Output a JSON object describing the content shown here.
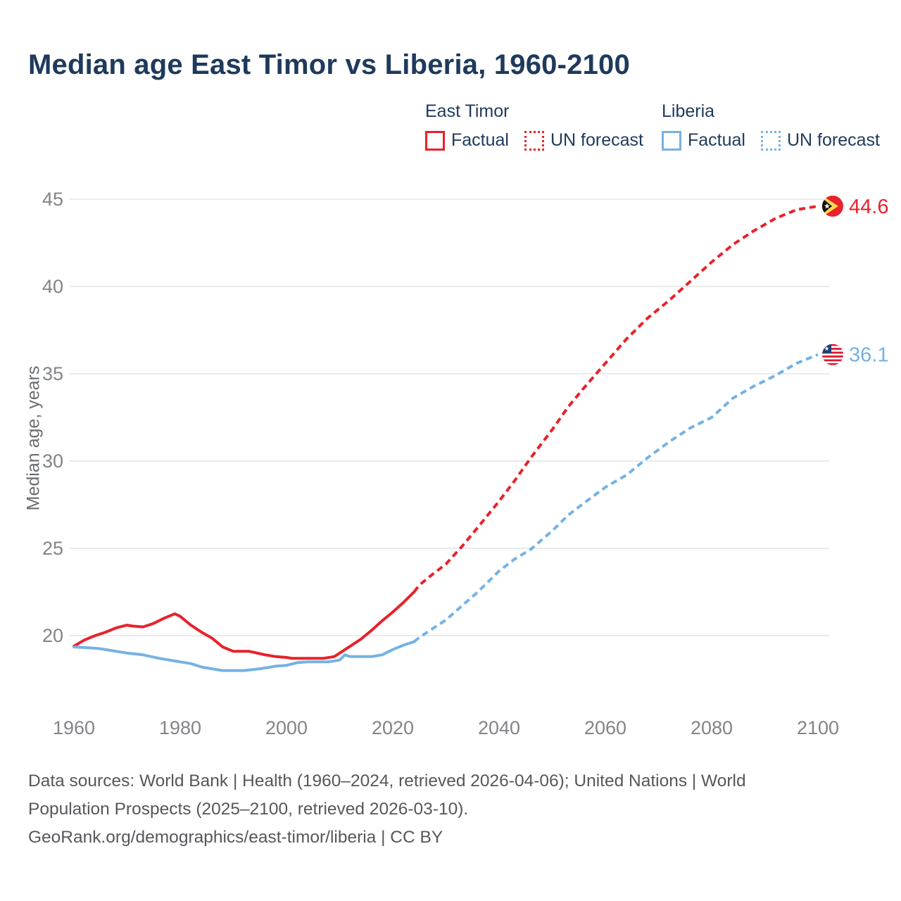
{
  "title": "Median age East Timor vs Liberia, 1960-2100",
  "legend": {
    "groups": [
      {
        "name": "East Timor",
        "color": "#e8222b",
        "items": [
          {
            "label": "Factual",
            "style": "solid"
          },
          {
            "label": "UN forecast",
            "style": "dotted"
          }
        ]
      },
      {
        "name": "Liberia",
        "color": "#76b2e3",
        "items": [
          {
            "label": "Factual",
            "style": "solid"
          },
          {
            "label": "UN forecast",
            "style": "dotted"
          }
        ]
      }
    ]
  },
  "chart_data": {
    "type": "line",
    "title": "Median age East Timor vs Liberia, 1960-2100",
    "xlabel": "",
    "ylabel": "Median age, years",
    "xlim": [
      1960,
      2100
    ],
    "ylim": [
      17.5,
      45.8
    ],
    "yticks": [
      20,
      25,
      30,
      35,
      40,
      45
    ],
    "xticks": [
      1960,
      1980,
      2000,
      2020,
      2040,
      2060,
      2080,
      2100
    ],
    "grid": "horizontal",
    "legend_position": "top",
    "watermark": "2100",
    "colors": {
      "east_timor": "#e8222b",
      "liberia": "#76b2e3",
      "grid": "#ebebeb",
      "tick_text": "#828487",
      "watermark": "#c6c8ca"
    },
    "series": [
      {
        "name": "East Timor — Factual",
        "color": "#e8222b",
        "style": "solid",
        "points": [
          [
            1960,
            19.4
          ],
          [
            1962,
            19.75
          ],
          [
            1964,
            20.0
          ],
          [
            1966,
            20.2
          ],
          [
            1968,
            20.45
          ],
          [
            1970,
            20.6
          ],
          [
            1971,
            20.55
          ],
          [
            1973,
            20.5
          ],
          [
            1975,
            20.7
          ],
          [
            1977,
            21.0
          ],
          [
            1979,
            21.25
          ],
          [
            1980,
            21.1
          ],
          [
            1982,
            20.6
          ],
          [
            1984,
            20.2
          ],
          [
            1986,
            19.85
          ],
          [
            1988,
            19.35
          ],
          [
            1990,
            19.1
          ],
          [
            1993,
            19.1
          ],
          [
            1996,
            18.9
          ],
          [
            1998,
            18.8
          ],
          [
            2000,
            18.75
          ],
          [
            2001,
            18.7
          ],
          [
            2004,
            18.7
          ],
          [
            2007,
            18.7
          ],
          [
            2009,
            18.8
          ],
          [
            2010,
            19.0
          ],
          [
            2012,
            19.4
          ],
          [
            2014,
            19.8
          ],
          [
            2016,
            20.3
          ],
          [
            2018,
            20.85
          ],
          [
            2020,
            21.35
          ],
          [
            2022,
            21.9
          ],
          [
            2023,
            22.2
          ],
          [
            2024,
            22.5
          ]
        ]
      },
      {
        "name": "East Timor — UN forecast",
        "color": "#e8222b",
        "style": "dashed",
        "end_label": "44.6",
        "end_value": 44.6,
        "points": [
          [
            2024,
            22.5
          ],
          [
            2025,
            22.9
          ],
          [
            2027,
            23.4
          ],
          [
            2030,
            24.1
          ],
          [
            2033,
            25.1
          ],
          [
            2036,
            26.2
          ],
          [
            2040,
            27.7
          ],
          [
            2043,
            28.9
          ],
          [
            2046,
            30.2
          ],
          [
            2050,
            31.8
          ],
          [
            2053,
            33.1
          ],
          [
            2056,
            34.2
          ],
          [
            2060,
            35.6
          ],
          [
            2064,
            37.0
          ],
          [
            2068,
            38.2
          ],
          [
            2072,
            39.2
          ],
          [
            2076,
            40.3
          ],
          [
            2080,
            41.4
          ],
          [
            2084,
            42.4
          ],
          [
            2088,
            43.2
          ],
          [
            2092,
            43.9
          ],
          [
            2096,
            44.4
          ],
          [
            2100,
            44.6
          ]
        ]
      },
      {
        "name": "Liberia — Factual",
        "color": "#76b2e3",
        "style": "solid",
        "points": [
          [
            1960,
            19.35
          ],
          [
            1963,
            19.3
          ],
          [
            1965,
            19.25
          ],
          [
            1967,
            19.15
          ],
          [
            1970,
            19.0
          ],
          [
            1973,
            18.9
          ],
          [
            1976,
            18.7
          ],
          [
            1979,
            18.55
          ],
          [
            1982,
            18.4
          ],
          [
            1984,
            18.2
          ],
          [
            1986,
            18.1
          ],
          [
            1988,
            18.0
          ],
          [
            1992,
            18.0
          ],
          [
            1995,
            18.1
          ],
          [
            1998,
            18.25
          ],
          [
            2000,
            18.3
          ],
          [
            2002,
            18.45
          ],
          [
            2004,
            18.5
          ],
          [
            2008,
            18.5
          ],
          [
            2010,
            18.6
          ],
          [
            2011,
            18.9
          ],
          [
            2012,
            18.8
          ],
          [
            2016,
            18.8
          ],
          [
            2018,
            18.9
          ],
          [
            2020,
            19.2
          ],
          [
            2022,
            19.45
          ],
          [
            2024,
            19.65
          ]
        ]
      },
      {
        "name": "Liberia — UN forecast",
        "color": "#76b2e3",
        "style": "dashed",
        "end_label": "36.1",
        "end_value": 36.1,
        "points": [
          [
            2024,
            19.65
          ],
          [
            2025,
            19.9
          ],
          [
            2028,
            20.5
          ],
          [
            2030,
            20.9
          ],
          [
            2033,
            21.7
          ],
          [
            2036,
            22.5
          ],
          [
            2040,
            23.7
          ],
          [
            2043,
            24.4
          ],
          [
            2046,
            24.95
          ],
          [
            2050,
            26.0
          ],
          [
            2053,
            26.9
          ],
          [
            2056,
            27.6
          ],
          [
            2060,
            28.5
          ],
          [
            2064,
            29.2
          ],
          [
            2068,
            30.2
          ],
          [
            2072,
            31.1
          ],
          [
            2076,
            31.9
          ],
          [
            2080,
            32.5
          ],
          [
            2084,
            33.6
          ],
          [
            2088,
            34.3
          ],
          [
            2092,
            34.9
          ],
          [
            2096,
            35.6
          ],
          [
            2100,
            36.1
          ]
        ]
      }
    ]
  },
  "footer": {
    "lines": [
      "Data sources: World Bank | Health (1960–2024, retrieved 2026-04-06); United Nations | World",
      "Population Prospects (2025–2100, retrieved 2026-03-10).",
      "GeoRank.org/demographics/east-timor/liberia | CC BY"
    ]
  }
}
